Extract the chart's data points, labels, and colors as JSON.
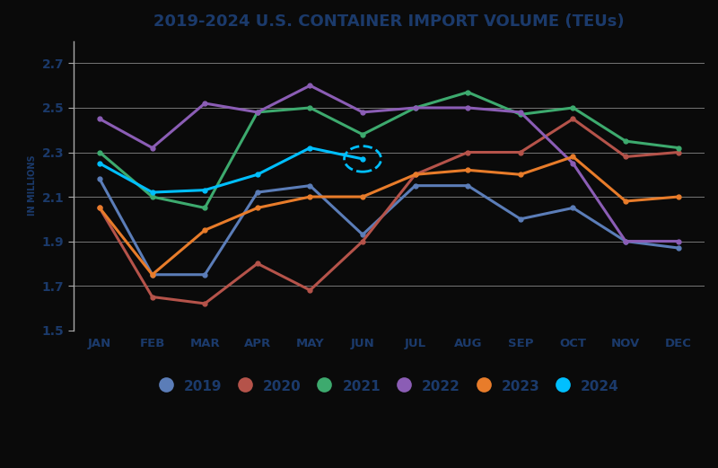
{
  "title": "2019-2024 U.S. CONTAINER IMPORT VOLUME (TEUs)",
  "ylabel": "IN MILLIONS",
  "months": [
    "JAN",
    "FEB",
    "MAR",
    "APR",
    "MAY",
    "JUN",
    "JUL",
    "AUG",
    "SEP",
    "OCT",
    "NOV",
    "DEC"
  ],
  "ylim": [
    1.5,
    2.8
  ],
  "yticks": [
    1.5,
    1.7,
    1.9,
    2.1,
    2.3,
    2.5,
    2.7
  ],
  "series": {
    "2019": {
      "color": "#5B7DB8",
      "data": [
        2.18,
        1.75,
        1.75,
        2.12,
        2.15,
        1.93,
        2.15,
        2.15,
        2.0,
        2.05,
        1.9,
        1.87
      ]
    },
    "2020": {
      "color": "#B5534A",
      "data": [
        2.05,
        1.65,
        1.62,
        1.8,
        1.68,
        1.9,
        2.2,
        2.3,
        2.3,
        2.45,
        2.28,
        2.3
      ]
    },
    "2021": {
      "color": "#3DAA6E",
      "data": [
        2.3,
        2.1,
        2.05,
        2.48,
        2.5,
        2.38,
        2.5,
        2.57,
        2.47,
        2.5,
        2.35,
        2.32
      ]
    },
    "2022": {
      "color": "#8B5DB5",
      "data": [
        2.45,
        2.32,
        2.52,
        2.48,
        2.6,
        2.48,
        2.5,
        2.5,
        2.48,
        2.25,
        1.9,
        1.9
      ]
    },
    "2023": {
      "color": "#E87C2A",
      "data": [
        2.05,
        1.75,
        1.95,
        2.05,
        2.1,
        2.1,
        2.2,
        2.22,
        2.2,
        2.28,
        2.08,
        2.1
      ]
    },
    "2024": {
      "color": "#00BFFF",
      "data": [
        2.25,
        2.12,
        2.13,
        2.2,
        2.32,
        2.27,
        null,
        null,
        null,
        null,
        null,
        null
      ]
    }
  },
  "circle_month_idx": 5,
  "circle_year": "2024",
  "background_color": "#0a0a0a",
  "plot_bg_color": "#0a0a0a",
  "grid_color": "#888888",
  "title_color": "#1B3A6B",
  "axis_label_color": "#1B3A6B",
  "tick_label_color": "#1B3A6B",
  "spine_color": "#aaaaaa",
  "legend_years": [
    "2019",
    "2020",
    "2021",
    "2022",
    "2023",
    "2024"
  ],
  "legend_colors": [
    "#5B7DB8",
    "#B5534A",
    "#3DAA6E",
    "#8B5DB5",
    "#E87C2A",
    "#00BFFF"
  ]
}
